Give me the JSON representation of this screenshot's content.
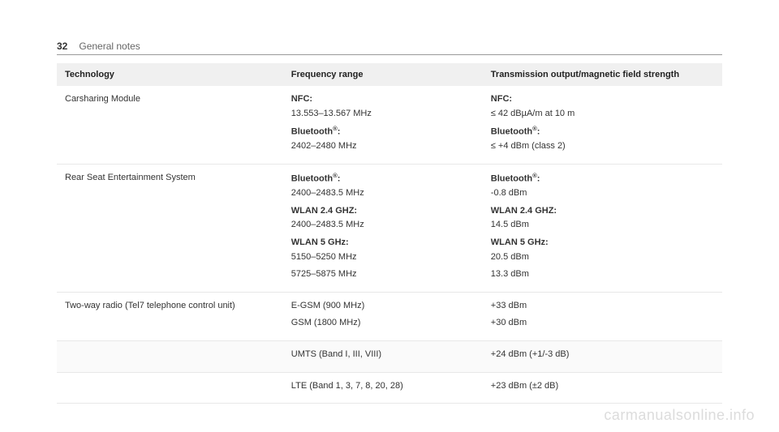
{
  "header": {
    "page_number": "32",
    "section": "General notes"
  },
  "table": {
    "columns": [
      "Technology",
      "Frequency range",
      "Transmission output/magnetic field strength"
    ],
    "rows": [
      {
        "tech": "Carsharing Module",
        "freq": [
          {
            "label": "NFC:",
            "value": "13.553–13.567 MHz"
          },
          {
            "label": "Bluetooth®:",
            "value": "2402–2480 MHz"
          }
        ],
        "out": [
          {
            "label": "NFC:",
            "value": "≤ 42 dBµA/m at 10 m"
          },
          {
            "label": "Bluetooth®:",
            "value": "≤ +4 dBm (class 2)"
          }
        ]
      },
      {
        "tech": "Rear Seat Entertainment System",
        "freq": [
          {
            "label": "Bluetooth®:",
            "value": "2400–2483.5 MHz"
          },
          {
            "label": "WLAN 2.4 GHZ:",
            "value": "2400–2483.5 MHz"
          },
          {
            "label": "WLAN 5 GHz:",
            "value": "5150–5250 MHz"
          },
          {
            "label": "",
            "value": "5725–5875 MHz"
          }
        ],
        "out": [
          {
            "label": "Bluetooth®:",
            "value": "-0.8 dBm"
          },
          {
            "label": "WLAN 2.4 GHZ:",
            "value": "14.5 dBm"
          },
          {
            "label": "WLAN 5 GHz:",
            "value": "20.5 dBm"
          },
          {
            "label": "",
            "value": "13.3 dBm"
          }
        ]
      },
      {
        "tech": "Two-way radio (Tel7 telephone control unit)",
        "freq": [
          {
            "label": "",
            "value": "E-GSM (900 MHz)"
          },
          {
            "label": "",
            "value": "GSM (1800 MHz)"
          }
        ],
        "out": [
          {
            "label": "",
            "value": "+33 dBm"
          },
          {
            "label": "",
            "value": "+30 dBm"
          }
        ]
      },
      {
        "tech": "",
        "freq": [
          {
            "label": "",
            "value": "UMTS (Band I, III, VIII)"
          }
        ],
        "out": [
          {
            "label": "",
            "value": "+24 dBm (+1/-3 dB)"
          }
        ]
      },
      {
        "tech": "",
        "freq": [
          {
            "label": "",
            "value": "LTE (Band 1, 3, 7, 8, 20, 28)"
          }
        ],
        "out": [
          {
            "label": "",
            "value": "+23 dBm (±2 dB)"
          }
        ]
      }
    ]
  },
  "watermark": "carmanualsonline.info"
}
